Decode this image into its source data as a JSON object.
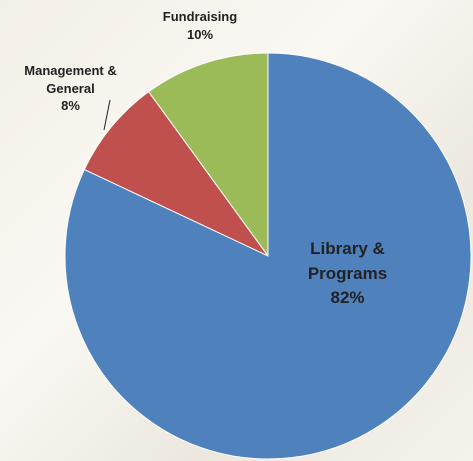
{
  "chart_data": {
    "type": "pie",
    "categories": [
      "Library & Programs",
      "Management & General",
      "Fundraising"
    ],
    "values": [
      82,
      8,
      10
    ],
    "value_labels": [
      "82%",
      "8%",
      "10%"
    ],
    "colors": [
      "#4f81bd",
      "#c0504d",
      "#9bbb59"
    ]
  }
}
